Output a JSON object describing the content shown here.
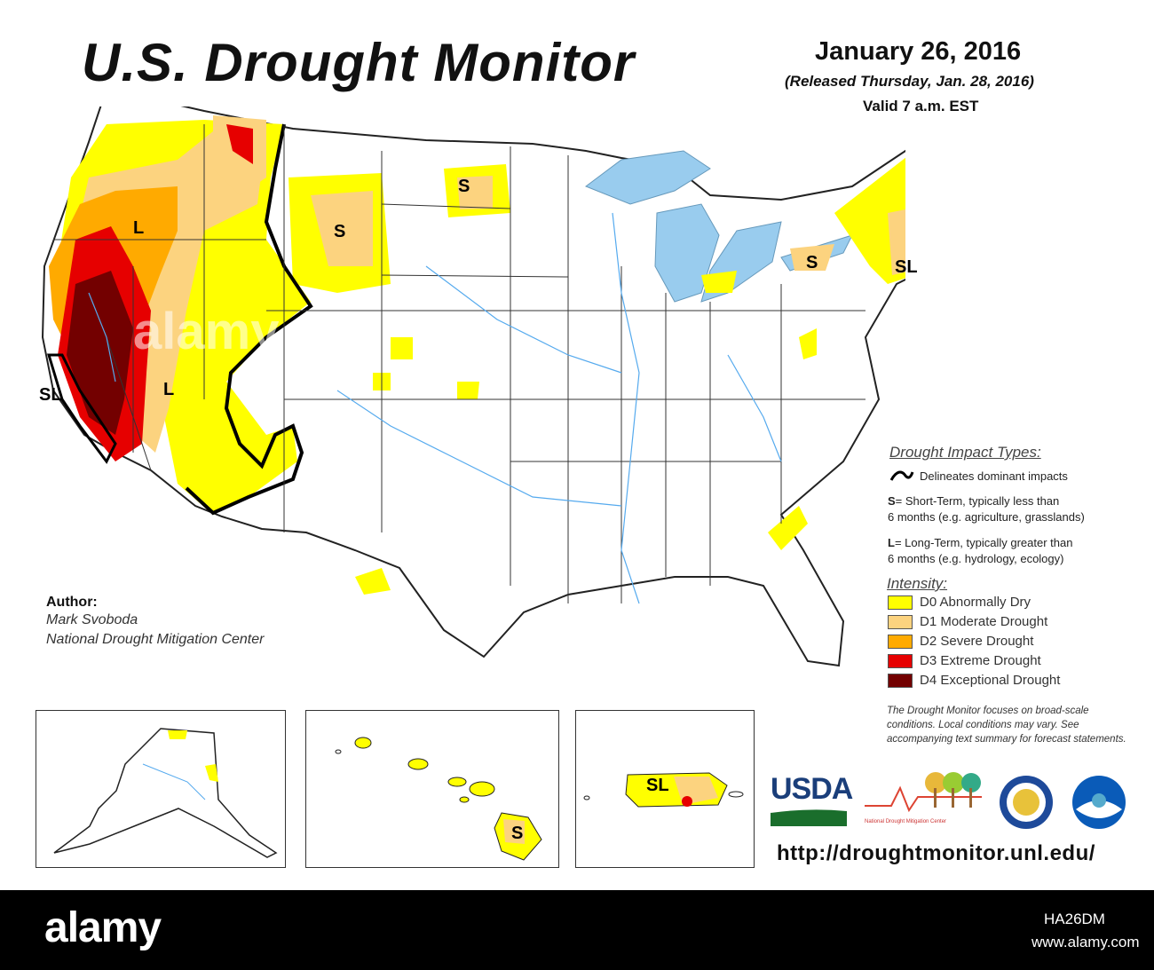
{
  "header": {
    "title": "U.S. Drought Monitor",
    "date": "January 26, 2016",
    "released": "(Released Thursday, Jan. 28, 2016)",
    "valid": "Valid 7 a.m. EST"
  },
  "map_labels": {
    "s1": "S",
    "s2": "S",
    "s3": "S",
    "l1": "L",
    "l2": "L",
    "sl_ca": "SL",
    "sl_ne": "SL",
    "sl_pr": "SL",
    "s_hi": "S"
  },
  "author": {
    "label": "Author:",
    "name": "Mark Svoboda",
    "org": "National Drought Mitigation Center"
  },
  "impact_legend": {
    "heading": "Drought Impact Types:",
    "delineates": "Delineates dominant impacts",
    "s_key": "S",
    "s_line1": "= Short-Term, typically less than",
    "s_line2": "6 months (e.g. agriculture, grasslands)",
    "l_key": "L",
    "l_line1": "= Long-Term, typically greater than",
    "l_line2": "6 months (e.g. hydrology, ecology)"
  },
  "intensity_legend": {
    "heading": "Intensity:",
    "items": [
      {
        "label": "D0 Abnormally Dry",
        "color": "#ffff00"
      },
      {
        "label": "D1 Moderate Drought",
        "color": "#fcd37f"
      },
      {
        "label": "D2 Severe Drought",
        "color": "#ffaa00"
      },
      {
        "label": "D3 Extreme Drought",
        "color": "#e60000"
      },
      {
        "label": "D4 Exceptional Drought",
        "color": "#730000"
      }
    ]
  },
  "footnote": "The Drought Monitor focuses on broad-scale conditions. Local conditions may vary. See accompanying text summary for forecast statements.",
  "logos": {
    "usda": "USDA",
    "ndmc_left": "National",
    "ndmc_right": "Drought Mitigation Center"
  },
  "url": "http://droughtmonitor.unl.edu/",
  "watermark": "alamy",
  "footer": {
    "brand": "alamy",
    "image_id": "HA26DM",
    "site": "www.alamy.com"
  },
  "colors": {
    "water": "#99ccee",
    "river": "#55aaee",
    "border": "#222222"
  }
}
